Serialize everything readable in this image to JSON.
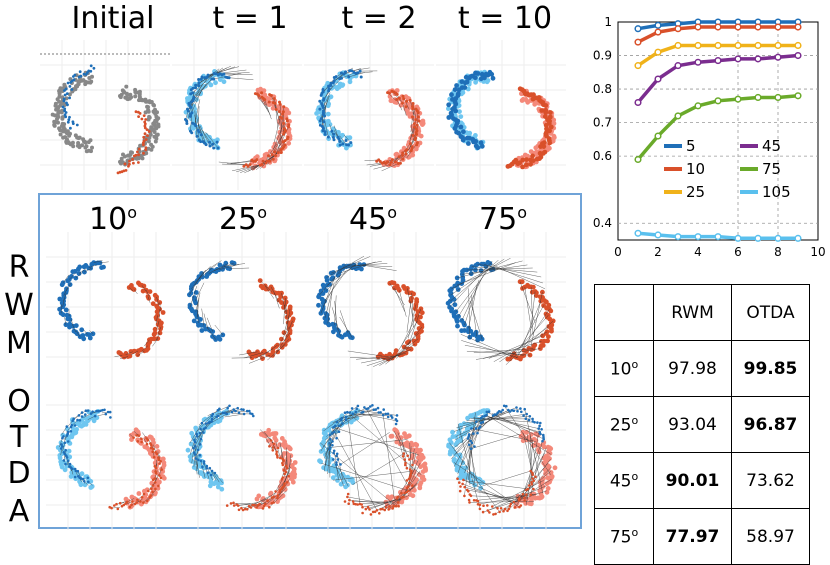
{
  "top_titles": [
    "Initial",
    "t = 1",
    "t = 2",
    "t = 10"
  ],
  "angle_titles": [
    {
      "value": "10",
      "sup": "o"
    },
    {
      "value": "25",
      "sup": "o"
    },
    {
      "value": "45",
      "sup": "o"
    },
    {
      "value": "75",
      "sup": "o"
    }
  ],
  "row_labels": {
    "rwm": [
      "R",
      "W",
      "M"
    ],
    "otda": [
      "O",
      "T",
      "D",
      "A"
    ]
  },
  "colors": {
    "blue_dark": "#1f6fb8",
    "blue_light": "#6ec6f0",
    "red_dark": "#d9502a",
    "red_light": "#f4897a",
    "gray": "#888888",
    "frame": "#6fa3d8"
  },
  "chart_data": [
    {
      "type": "line",
      "x": [
        1,
        2,
        3,
        4,
        5,
        6,
        7,
        8,
        9
      ],
      "xlim": [
        0,
        10
      ],
      "ylim": [
        0.35,
        1.0
      ],
      "xticks": [
        "0",
        "2",
        "4",
        "6",
        "8",
        "10"
      ],
      "yticks": [
        "1",
        "0.9",
        "0.8",
        "0.7",
        "0.6",
        "0.4"
      ],
      "grid": "dashed",
      "legend_position": "inside-center",
      "series": [
        {
          "name": "5",
          "color": "#1f6fb8",
          "values": [
            0.98,
            0.99,
            0.995,
            1.0,
            1.0,
            1.0,
            1.0,
            1.0,
            1.0
          ]
        },
        {
          "name": "10",
          "color": "#d9502a",
          "values": [
            0.94,
            0.97,
            0.98,
            0.985,
            0.985,
            0.985,
            0.985,
            0.985,
            0.985
          ]
        },
        {
          "name": "25",
          "color": "#f0b21a",
          "values": [
            0.87,
            0.91,
            0.93,
            0.93,
            0.93,
            0.93,
            0.93,
            0.93,
            0.93
          ]
        },
        {
          "name": "45",
          "color": "#7b2d8f",
          "values": [
            0.76,
            0.83,
            0.87,
            0.88,
            0.885,
            0.89,
            0.89,
            0.895,
            0.9
          ]
        },
        {
          "name": "75",
          "color": "#6aaa2a",
          "values": [
            0.59,
            0.66,
            0.72,
            0.75,
            0.765,
            0.77,
            0.775,
            0.775,
            0.78
          ]
        },
        {
          "name": "105",
          "color": "#5ac0ee",
          "values": [
            0.37,
            0.365,
            0.36,
            0.36,
            0.36,
            0.355,
            0.355,
            0.355,
            0.355
          ]
        }
      ]
    },
    {
      "type": "table",
      "columns": [
        "",
        "RWM",
        "OTDA"
      ],
      "rows": [
        {
          "angle": "10",
          "sup": "o",
          "rwm": "97.98",
          "otda": "99.85",
          "best": "otda"
        },
        {
          "angle": "25",
          "sup": "o",
          "rwm": "93.04",
          "otda": "96.87",
          "best": "otda"
        },
        {
          "angle": "45",
          "sup": "o",
          "rwm": "90.01",
          "otda": "73.62",
          "best": "rwm"
        },
        {
          "angle": "75",
          "sup": "o",
          "rwm": "77.97",
          "otda": "58.97",
          "best": "rwm"
        }
      ]
    }
  ]
}
